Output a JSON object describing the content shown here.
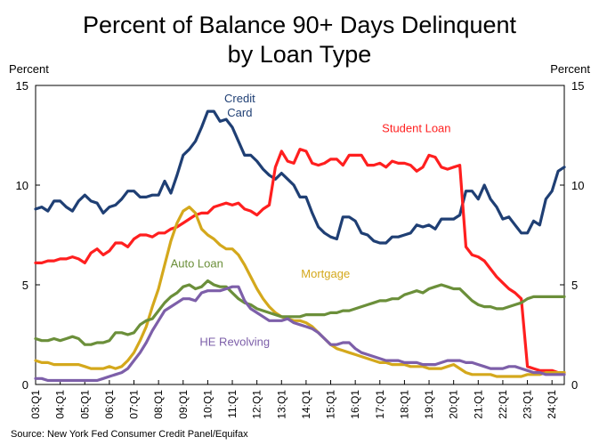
{
  "chart_data": {
    "type": "line",
    "title": "Percent of Balance 90+ Days Delinquent",
    "subtitle": "by Loan Type",
    "ylabel_left": "Percent",
    "ylabel_right": "Percent",
    "ylim": [
      0,
      15
    ],
    "yticks": [
      0,
      5,
      10,
      15
    ],
    "x_start": "03:Q1",
    "x_end": "24:Q3",
    "xtick_labels": [
      "03:Q1",
      "04:Q1",
      "05:Q1",
      "06:Q1",
      "07:Q1",
      "08:Q1",
      "09:Q1",
      "10:Q1",
      "11:Q1",
      "12:Q1",
      "13:Q1",
      "14:Q1",
      "15:Q1",
      "16:Q1",
      "17:Q1",
      "18:Q1",
      "19:Q1",
      "20:Q1",
      "21:Q1",
      "22:Q1",
      "23:Q1",
      "24:Q1"
    ],
    "grid": false,
    "series": [
      {
        "name": "Credit Card",
        "color": "#1f3f74",
        "label": [
          "Credit",
          "Card"
        ],
        "values": [
          8.8,
          8.9,
          8.7,
          9.2,
          9.2,
          8.9,
          8.7,
          9.2,
          9.5,
          9.2,
          9.1,
          8.6,
          8.9,
          9.0,
          9.3,
          9.7,
          9.7,
          9.4,
          9.4,
          9.5,
          9.5,
          10.2,
          9.6,
          10.5,
          11.5,
          11.8,
          12.2,
          12.9,
          13.7,
          13.7,
          13.2,
          13.3,
          12.9,
          12.2,
          11.5,
          11.5,
          11.2,
          10.8,
          10.5,
          10.3,
          10.6,
          10.3,
          10.0,
          9.4,
          9.4,
          8.6,
          7.9,
          7.6,
          7.4,
          7.3,
          8.4,
          8.4,
          8.2,
          7.6,
          7.5,
          7.2,
          7.1,
          7.1,
          7.4,
          7.4,
          7.5,
          7.6,
          8.0,
          7.9,
          8.0,
          7.8,
          8.3,
          8.3,
          8.3,
          8.5,
          9.7,
          9.7,
          9.3,
          10.0,
          9.3,
          8.9,
          8.3,
          8.4,
          8.0,
          7.6,
          7.6,
          8.2,
          8.0,
          9.3,
          9.7,
          10.7,
          10.9
        ]
      },
      {
        "name": "Student Loan",
        "color": "#ff1f1f",
        "label": [
          "Student Loan"
        ],
        "values": [
          6.1,
          6.1,
          6.2,
          6.2,
          6.3,
          6.3,
          6.4,
          6.3,
          6.1,
          6.6,
          6.8,
          6.5,
          6.7,
          7.1,
          7.1,
          6.9,
          7.3,
          7.5,
          7.5,
          7.4,
          7.6,
          7.6,
          7.8,
          7.9,
          8.1,
          8.3,
          8.5,
          8.6,
          8.6,
          8.9,
          9.0,
          9.1,
          9.0,
          9.1,
          8.8,
          8.7,
          8.5,
          8.8,
          9.0,
          10.9,
          11.7,
          11.2,
          11.1,
          11.8,
          11.7,
          11.1,
          11.0,
          11.1,
          11.3,
          11.3,
          11.0,
          11.5,
          11.5,
          11.5,
          11.0,
          11.0,
          11.1,
          10.9,
          11.2,
          11.1,
          11.1,
          11.0,
          10.7,
          10.9,
          11.5,
          11.4,
          10.9,
          10.8,
          10.9,
          11.0,
          6.9,
          6.5,
          6.4,
          6.2,
          5.8,
          5.4,
          5.1,
          4.8,
          4.6,
          4.3,
          0.9,
          0.8,
          0.7,
          0.7,
          0.7,
          0.6,
          0.6
        ]
      },
      {
        "name": "Mortgage",
        "color": "#d4a81c",
        "label": [
          "Mortgage"
        ],
        "values": [
          1.2,
          1.1,
          1.1,
          1.0,
          1.0,
          1.0,
          1.0,
          1.0,
          0.9,
          0.8,
          0.8,
          0.8,
          0.9,
          0.8,
          0.9,
          1.2,
          1.6,
          2.2,
          2.9,
          3.9,
          4.8,
          6.0,
          7.2,
          8.1,
          8.7,
          8.9,
          8.6,
          7.8,
          7.5,
          7.3,
          7.0,
          6.8,
          6.8,
          6.5,
          6.0,
          5.4,
          4.8,
          4.3,
          3.9,
          3.6,
          3.4,
          3.3,
          3.2,
          3.2,
          3.1,
          2.9,
          2.6,
          2.3,
          2.0,
          1.8,
          1.7,
          1.6,
          1.5,
          1.4,
          1.3,
          1.2,
          1.1,
          1.1,
          1.0,
          1.0,
          1.0,
          0.9,
          0.9,
          0.9,
          0.8,
          0.8,
          0.8,
          0.9,
          1.0,
          0.8,
          0.6,
          0.5,
          0.5,
          0.5,
          0.5,
          0.4,
          0.4,
          0.4,
          0.4,
          0.4,
          0.5,
          0.5,
          0.5,
          0.6,
          0.6,
          0.6,
          0.6
        ]
      },
      {
        "name": "Auto Loan",
        "color": "#6b8f3a",
        "label": [
          "Auto Loan"
        ],
        "values": [
          2.3,
          2.2,
          2.2,
          2.3,
          2.2,
          2.3,
          2.4,
          2.3,
          2.0,
          2.0,
          2.1,
          2.1,
          2.2,
          2.6,
          2.6,
          2.5,
          2.6,
          3.0,
          3.2,
          3.3,
          3.7,
          4.1,
          4.4,
          4.6,
          4.9,
          5.0,
          4.8,
          4.9,
          5.2,
          5.0,
          4.9,
          4.9,
          4.6,
          4.3,
          4.1,
          4.0,
          3.8,
          3.7,
          3.6,
          3.5,
          3.4,
          3.4,
          3.4,
          3.4,
          3.5,
          3.5,
          3.5,
          3.5,
          3.6,
          3.6,
          3.7,
          3.7,
          3.8,
          3.9,
          4.0,
          4.1,
          4.2,
          4.2,
          4.3,
          4.3,
          4.5,
          4.6,
          4.7,
          4.6,
          4.8,
          4.9,
          5.0,
          4.9,
          4.8,
          4.8,
          4.5,
          4.2,
          4.0,
          3.9,
          3.9,
          3.8,
          3.8,
          3.9,
          4.0,
          4.1,
          4.3,
          4.4,
          4.4,
          4.4,
          4.4,
          4.4,
          4.4
        ]
      },
      {
        "name": "HE Revolving",
        "color": "#7d5fa9",
        "label": [
          "HE Revolving"
        ],
        "values": [
          0.3,
          0.3,
          0.2,
          0.2,
          0.2,
          0.2,
          0.2,
          0.2,
          0.2,
          0.2,
          0.2,
          0.3,
          0.4,
          0.5,
          0.6,
          0.8,
          1.2,
          1.6,
          2.1,
          2.7,
          3.2,
          3.7,
          3.9,
          4.1,
          4.3,
          4.3,
          4.2,
          4.6,
          4.7,
          4.7,
          4.7,
          4.8,
          4.9,
          4.9,
          4.2,
          3.8,
          3.6,
          3.4,
          3.2,
          3.2,
          3.2,
          3.3,
          3.1,
          3.0,
          2.9,
          2.8,
          2.6,
          2.3,
          2.0,
          2.0,
          2.1,
          2.1,
          1.8,
          1.6,
          1.5,
          1.4,
          1.3,
          1.2,
          1.2,
          1.2,
          1.1,
          1.1,
          1.1,
          1.0,
          1.0,
          1.0,
          1.1,
          1.2,
          1.2,
          1.2,
          1.1,
          1.1,
          1.0,
          0.9,
          0.8,
          0.8,
          0.8,
          0.9,
          0.9,
          0.8,
          0.7,
          0.6,
          0.6,
          0.5,
          0.5,
          0.5,
          0.5
        ]
      }
    ]
  },
  "source": "Source: New York Fed Consumer Credit Panel/Equifax"
}
